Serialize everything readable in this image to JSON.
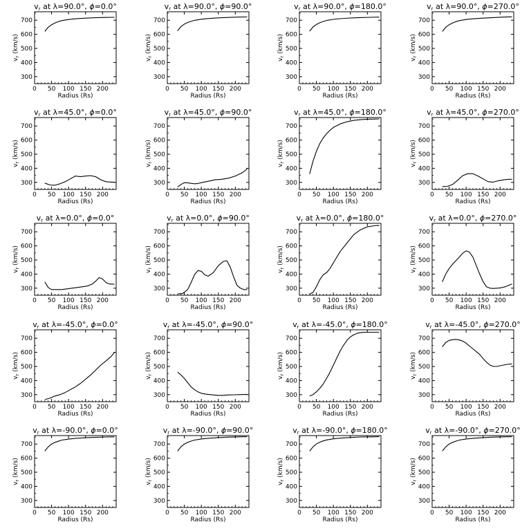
{
  "chart_data": {
    "type": "line",
    "layout": "4 columns x 5 rows grid",
    "xlabel": "Radius (Rs)",
    "ylabel": "v_r (km/s)",
    "xlim": [
      0,
      240
    ],
    "ylim": [
      250,
      760
    ],
    "xticks": [
      0,
      50,
      100,
      150,
      200
    ],
    "yticks": [
      300,
      400,
      500,
      600,
      700
    ],
    "panels": [
      {
        "lambda": "90.0",
        "phi": "0.0",
        "x": [
          30,
          40,
          50,
          60,
          70,
          80,
          100,
          120,
          150,
          180,
          210,
          235
        ],
        "y": [
          620,
          650,
          668,
          680,
          690,
          697,
          705,
          710,
          715,
          718,
          720,
          721
        ]
      },
      {
        "lambda": "90.0",
        "phi": "90.0",
        "x": [
          30,
          40,
          50,
          60,
          70,
          80,
          100,
          120,
          150,
          180,
          210,
          235
        ],
        "y": [
          625,
          655,
          672,
          684,
          692,
          699,
          707,
          712,
          717,
          720,
          722,
          723
        ]
      },
      {
        "lambda": "90.0",
        "phi": "180.0",
        "x": [
          30,
          40,
          50,
          60,
          70,
          80,
          100,
          120,
          150,
          180,
          210,
          235
        ],
        "y": [
          622,
          652,
          670,
          682,
          691,
          698,
          706,
          711,
          716,
          719,
          721,
          722
        ]
      },
      {
        "lambda": "90.0",
        "phi": "270.0",
        "x": [
          30,
          40,
          50,
          60,
          70,
          80,
          100,
          120,
          150,
          180,
          210,
          235
        ],
        "y": [
          620,
          650,
          668,
          680,
          690,
          697,
          705,
          710,
          715,
          719,
          722,
          724
        ]
      },
      {
        "lambda": "45.0",
        "phi": "0.0",
        "x": [
          30,
          45,
          60,
          75,
          90,
          105,
          120,
          135,
          150,
          165,
          180,
          195,
          210,
          225,
          235
        ],
        "y": [
          295,
          282,
          280,
          290,
          305,
          325,
          345,
          340,
          345,
          348,
          340,
          318,
          305,
          302,
          302
        ]
      },
      {
        "lambda": "45.0",
        "phi": "90.0",
        "x": [
          30,
          40,
          50,
          60,
          70,
          80,
          90,
          100,
          120,
          140,
          160,
          180,
          200,
          220,
          235
        ],
        "y": [
          268,
          285,
          298,
          297,
          293,
          290,
          292,
          298,
          308,
          318,
          322,
          330,
          345,
          368,
          395
        ]
      },
      {
        "lambda": "45.0",
        "phi": "180.0",
        "x": [
          30,
          40,
          50,
          60,
          70,
          80,
          90,
          100,
          120,
          140,
          160,
          180,
          200,
          220,
          235
        ],
        "y": [
          360,
          450,
          520,
          575,
          615,
          645,
          670,
          690,
          715,
          730,
          740,
          745,
          748,
          749,
          750
        ]
      },
      {
        "lambda": "45.0",
        "phi": "270.0",
        "x": [
          30,
          45,
          60,
          75,
          90,
          105,
          120,
          135,
          150,
          165,
          180,
          195,
          210,
          225,
          235
        ],
        "y": [
          270,
          272,
          285,
          315,
          348,
          362,
          362,
          345,
          325,
          305,
          302,
          312,
          318,
          322,
          322
        ]
      },
      {
        "lambda": "0.0",
        "phi": "0.0",
        "x": [
          30,
          40,
          50,
          65,
          80,
          95,
          110,
          125,
          140,
          155,
          170,
          180,
          190,
          200,
          210,
          220,
          235
        ],
        "y": [
          345,
          305,
          290,
          290,
          290,
          295,
          300,
          305,
          310,
          315,
          330,
          350,
          375,
          365,
          340,
          330,
          328
        ]
      },
      {
        "lambda": "0.0",
        "phi": "90.0",
        "x": [
          30,
          45,
          60,
          70,
          80,
          90,
          100,
          110,
          120,
          135,
          150,
          165,
          175,
          185,
          195,
          205,
          215,
          225,
          235
        ],
        "y": [
          260,
          262,
          290,
          340,
          395,
          425,
          420,
          395,
          385,
          410,
          460,
          490,
          495,
          450,
          380,
          320,
          300,
          290,
          290
        ]
      },
      {
        "lambda": "0.0",
        "phi": "180.0",
        "x": [
          30,
          40,
          50,
          60,
          70,
          80,
          90,
          100,
          110,
          120,
          140,
          160,
          180,
          200,
          220,
          235
        ],
        "y": [
          258,
          270,
          310,
          360,
          395,
          410,
          440,
          480,
          520,
          560,
          620,
          680,
          715,
          735,
          743,
          745
        ]
      },
      {
        "lambda": "0.0",
        "phi": "270.0",
        "x": [
          30,
          40,
          50,
          60,
          70,
          80,
          90,
          100,
          110,
          120,
          130,
          140,
          150,
          160,
          170,
          180,
          190,
          200,
          215,
          235
        ],
        "y": [
          345,
          400,
          440,
          470,
          495,
          520,
          548,
          565,
          555,
          520,
          460,
          400,
          345,
          310,
          300,
          298,
          300,
          302,
          310,
          330
        ]
      },
      {
        "lambda": "-45.0",
        "phi": "0.0",
        "x": [
          30,
          45,
          60,
          75,
          90,
          105,
          120,
          135,
          150,
          165,
          180,
          195,
          210,
          225,
          235
        ],
        "y": [
          265,
          275,
          290,
          300,
          315,
          335,
          355,
          380,
          410,
          440,
          475,
          510,
          540,
          570,
          600
        ]
      },
      {
        "lambda": "-45.0",
        "phi": "90.0",
        "x": [
          30,
          40,
          50,
          60,
          70,
          80,
          90,
          100,
          110,
          120,
          135,
          150,
          165,
          180,
          195,
          210,
          225,
          235
        ],
        "y": [
          460,
          440,
          415,
          385,
          355,
          335,
          320,
          310,
          305,
          302,
          298,
          295,
          295,
          298,
          299,
          300,
          301,
          302
        ]
      },
      {
        "lambda": "-45.0",
        "phi": "180.0",
        "x": [
          30,
          40,
          50,
          60,
          70,
          80,
          90,
          100,
          110,
          120,
          130,
          140,
          150,
          160,
          170,
          180,
          190,
          200,
          210,
          220,
          235
        ],
        "y": [
          290,
          300,
          320,
          345,
          375,
          415,
          460,
          510,
          560,
          610,
          650,
          685,
          710,
          725,
          735,
          740,
          742,
          743,
          743,
          743,
          743
        ]
      },
      {
        "lambda": "-45.0",
        "phi": "270.0",
        "x": [
          30,
          40,
          50,
          60,
          70,
          80,
          90,
          100,
          110,
          120,
          130,
          140,
          150,
          160,
          170,
          180,
          190,
          200,
          210,
          220,
          235
        ],
        "y": [
          640,
          670,
          685,
          690,
          692,
          688,
          680,
          665,
          645,
          625,
          605,
          585,
          555,
          530,
          510,
          500,
          500,
          505,
          510,
          515,
          518
        ]
      },
      {
        "lambda": "-90.0",
        "phi": "0.0",
        "x": [
          30,
          40,
          50,
          60,
          70,
          80,
          100,
          120,
          150,
          180,
          210,
          235
        ],
        "y": [
          650,
          680,
          700,
          712,
          720,
          728,
          735,
          740,
          745,
          748,
          750,
          751
        ]
      },
      {
        "lambda": "-90.0",
        "phi": "90.0",
        "x": [
          30,
          40,
          50,
          60,
          70,
          80,
          100,
          120,
          150,
          180,
          210,
          235
        ],
        "y": [
          650,
          680,
          700,
          712,
          721,
          728,
          736,
          741,
          746,
          749,
          751,
          752
        ]
      },
      {
        "lambda": "-90.0",
        "phi": "180.0",
        "x": [
          30,
          40,
          50,
          60,
          70,
          80,
          100,
          120,
          150,
          180,
          210,
          235
        ],
        "y": [
          650,
          680,
          700,
          713,
          722,
          729,
          737,
          742,
          747,
          750,
          751,
          752
        ]
      },
      {
        "lambda": "-90.0",
        "phi": "270.0",
        "x": [
          30,
          40,
          50,
          60,
          70,
          80,
          100,
          120,
          150,
          180,
          210,
          235
        ],
        "y": [
          650,
          680,
          700,
          712,
          721,
          728,
          736,
          741,
          746,
          749,
          751,
          752
        ]
      }
    ]
  }
}
